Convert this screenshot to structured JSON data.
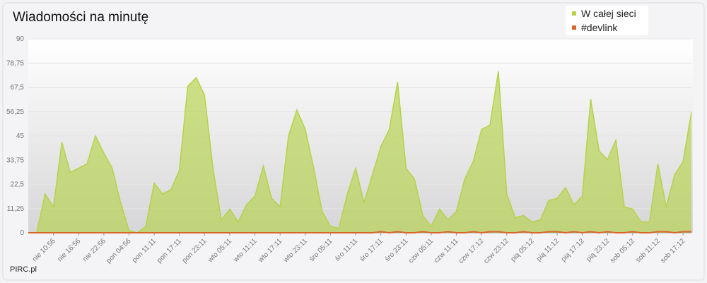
{
  "chart_data": {
    "type": "area",
    "title": "Wiadomości na minutę",
    "credit": "PIRC.pl",
    "categories": [
      null,
      null,
      null,
      "nie 10:56",
      null,
      null,
      "nie 16:56",
      null,
      null,
      "nie 22:56",
      null,
      null,
      "pon 04:56",
      null,
      null,
      "pon 11:11",
      null,
      null,
      "pon 17:11",
      null,
      null,
      "pon 23:11",
      null,
      null,
      "wto 05:11",
      null,
      null,
      "wto 11:11",
      null,
      null,
      "wto 17:11",
      null,
      null,
      "wto 23:11",
      null,
      null,
      "śro 05:11",
      null,
      null,
      "śro 11:11",
      null,
      null,
      "śro 17:11",
      null,
      null,
      "śro 23:11",
      null,
      null,
      "czw 05:11",
      null,
      null,
      "czw 11:11",
      null,
      null,
      "czw 17:12",
      null,
      null,
      "czw 23:12",
      null,
      null,
      "pią 05:12",
      null,
      null,
      "pią 11:12",
      null,
      null,
      "pią 17:12",
      null,
      null,
      "pią 23:12",
      null,
      null,
      "sob 05:12",
      null,
      null,
      "sob 11:12",
      null,
      null,
      "sob 17:12",
      null
    ],
    "series": [
      {
        "name": "W całej sieci",
        "color": "#b5d24a",
        "values": [
          0,
          0,
          18,
          12,
          42,
          28,
          30,
          32,
          45,
          37,
          30,
          14,
          1,
          0,
          3,
          23,
          18,
          20,
          29,
          68,
          72,
          64,
          30,
          6,
          11,
          5,
          13,
          17,
          31,
          16,
          12,
          45,
          57,
          48,
          30,
          10,
          3,
          2,
          18,
          30,
          14,
          27,
          40,
          48,
          70,
          30,
          25,
          8,
          3,
          11,
          6,
          10,
          25,
          33,
          48,
          50,
          75,
          18,
          7,
          8,
          5,
          6,
          15,
          16,
          21,
          13,
          17,
          62,
          38,
          34,
          43,
          12,
          11,
          5,
          5,
          32,
          12,
          27,
          33,
          56
        ]
      },
      {
        "name": "#devlink",
        "color": "#d9662b",
        "values": [
          0,
          0,
          0,
          0,
          0,
          0,
          0,
          0,
          0,
          0,
          0,
          0,
          0,
          0,
          0,
          0,
          0,
          0,
          0,
          0,
          0,
          0,
          0,
          0,
          0,
          0,
          0,
          0,
          0,
          0,
          0,
          0,
          0,
          0,
          0,
          0,
          0,
          0,
          0,
          0,
          0,
          0,
          0.5,
          0,
          0.5,
          0,
          0,
          0.5,
          0,
          0,
          0.5,
          0,
          0,
          0.5,
          0,
          0.5,
          0.5,
          0,
          0,
          0.5,
          0,
          0,
          0.5,
          0.5,
          0,
          0.5,
          0,
          0.5,
          0,
          0.5,
          0,
          0,
          0.5,
          0,
          0,
          0.5,
          0.5,
          0,
          0.5,
          0.5
        ]
      }
    ],
    "ylim": [
      0,
      90
    ],
    "yticks": [
      0,
      {
        "value": 11.25,
        "label": "11,25"
      },
      {
        "value": 22.5,
        "label": "22,5"
      },
      {
        "value": 33.75,
        "label": "33,75"
      },
      45,
      {
        "value": 56.25,
        "label": "56,25"
      },
      {
        "value": 67.5,
        "label": "67,5"
      },
      {
        "value": 78.75,
        "label": "78,75"
      },
      90
    ],
    "legend": "top-right"
  }
}
